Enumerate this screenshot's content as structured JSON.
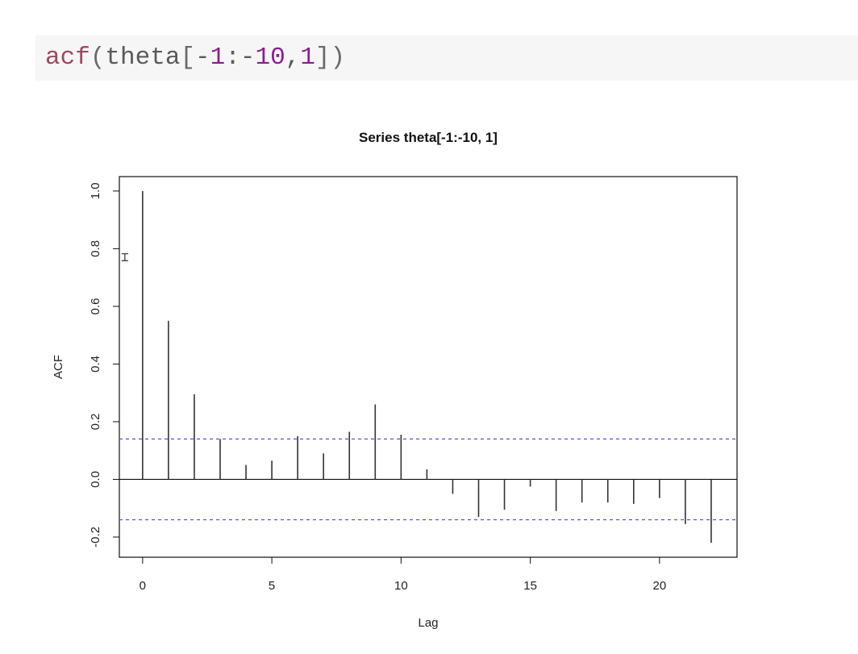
{
  "code_cell": {
    "tokens": [
      {
        "text": "acf",
        "kind": "fn"
      },
      {
        "text": "(",
        "kind": "punct"
      },
      {
        "text": "theta",
        "kind": "plain"
      },
      {
        "text": "[",
        "kind": "punct"
      },
      {
        "text": "-",
        "kind": "plain"
      },
      {
        "text": "1",
        "kind": "num"
      },
      {
        "text": ":",
        "kind": "plain"
      },
      {
        "text": "-",
        "kind": "plain"
      },
      {
        "text": "10",
        "kind": "num"
      },
      {
        "text": ",",
        "kind": "plain"
      },
      {
        "text": "1",
        "kind": "num"
      },
      {
        "text": "])",
        "kind": "punct"
      }
    ]
  },
  "colors": {
    "function": "#9d4a5e",
    "number": "#8a1e8e",
    "code_background": "#f6f6f7",
    "confidence_line": "#5555dd",
    "spike": "#333333"
  },
  "cursor_icon": "i-beam-cursor-icon",
  "chart_data": {
    "type": "bar",
    "title": "Series  theta[-1:-10, 1]",
    "xlabel": "Lag",
    "ylabel": "ACF",
    "xlim": [
      -0.9,
      23
    ],
    "ylim": [
      -0.27,
      1.05
    ],
    "x_ticks": [
      0,
      5,
      10,
      15,
      20
    ],
    "x_tick_labels": [
      "0",
      "5",
      "10",
      "15",
      "20"
    ],
    "y_ticks": [
      -0.2,
      0.0,
      0.2,
      0.4,
      0.6,
      0.8,
      1.0
    ],
    "y_tick_labels": [
      "-0.2",
      "0.0",
      "0.2",
      "0.4",
      "0.6",
      "0.8",
      "1.0"
    ],
    "grid": false,
    "confidence_bounds": [
      0.14,
      -0.14
    ],
    "x": [
      0,
      1,
      2,
      3,
      4,
      5,
      6,
      7,
      8,
      9,
      10,
      11,
      12,
      13,
      14,
      15,
      16,
      17,
      18,
      19,
      20,
      21,
      22
    ],
    "values": [
      1.0,
      0.55,
      0.295,
      0.14,
      0.05,
      0.065,
      0.15,
      0.09,
      0.165,
      0.26,
      0.155,
      0.035,
      -0.05,
      -0.13,
      -0.105,
      -0.025,
      -0.11,
      -0.08,
      -0.08,
      -0.085,
      -0.065,
      -0.155,
      -0.22
    ]
  }
}
